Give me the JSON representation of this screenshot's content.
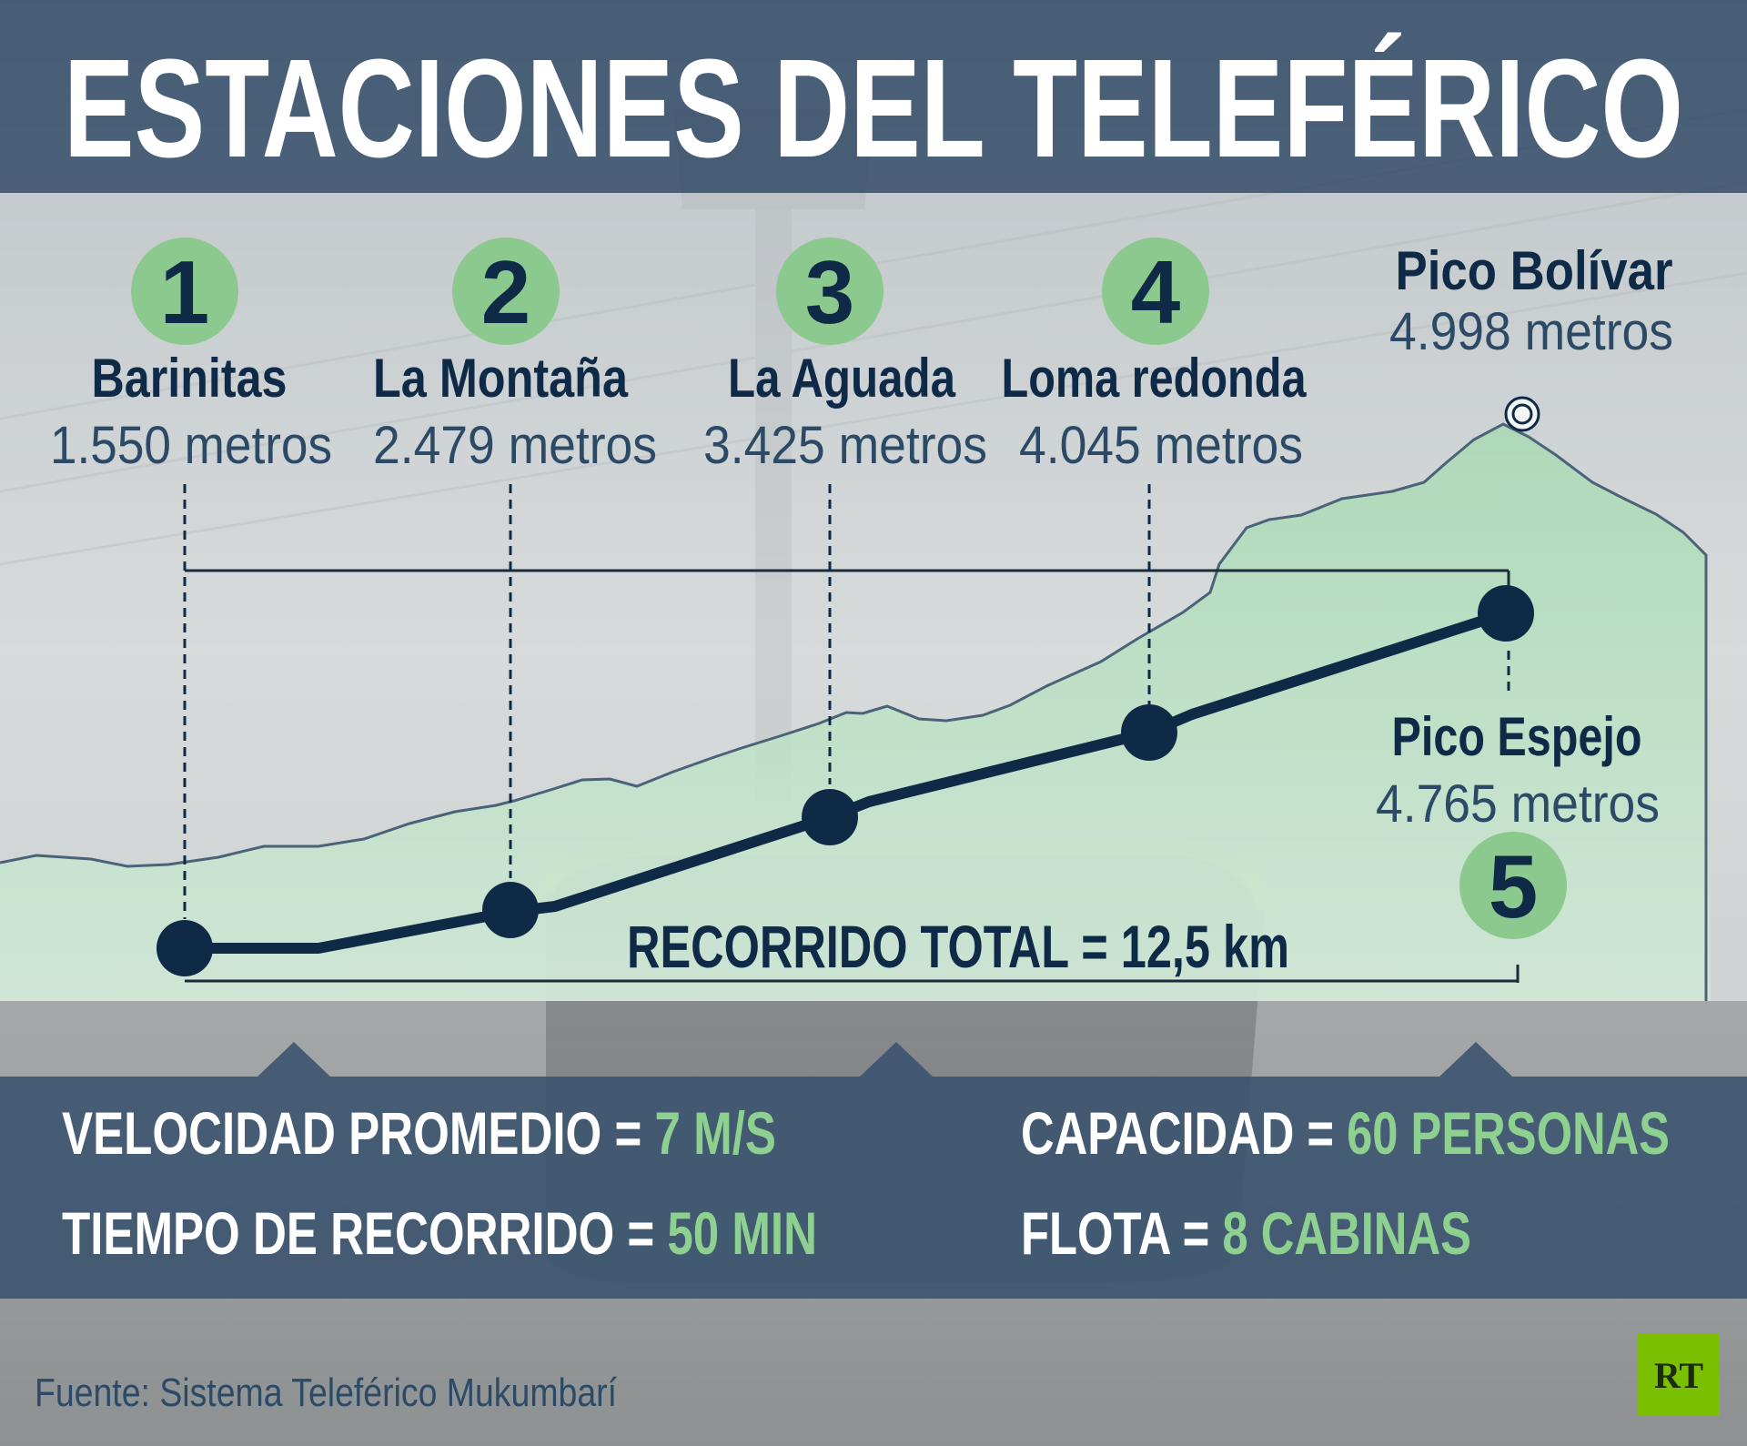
{
  "title": "ESTACIONES DEL TELEFÉRICO",
  "colors": {
    "navy": "#0f2a47",
    "header_band": "#3c5470",
    "stats_band": "#3c5470",
    "green": "#8cc98f",
    "green_text": "#8ed08f",
    "mountain": "#bfe0c7",
    "panel": "#f2f6f5",
    "fog": "#a9acad",
    "source_text": "#2c4a66",
    "rt_green": "#7bc000"
  },
  "stations": [
    {
      "number": "1",
      "name": "Barinitas",
      "elevation": "1.550 metros",
      "elevation_m": 1550
    },
    {
      "number": "2",
      "name": "La Montaña",
      "elevation": "2.479 metros",
      "elevation_m": 2479
    },
    {
      "number": "3",
      "name": "La Aguada",
      "elevation": "3.425 metros",
      "elevation_m": 3425
    },
    {
      "number": "4",
      "name": "Loma redonda",
      "elevation": "4.045 metros",
      "elevation_m": 4045
    },
    {
      "number": "5",
      "name": "Pico Espejo",
      "elevation": "4.765 metros",
      "elevation_m": 4765
    }
  ],
  "peak": {
    "name": "Pico Bolívar",
    "elevation": "4.998 metros",
    "icon": "peak-marker-icon"
  },
  "total": {
    "label": "RECORRIDO TOTAL = 12,5 km"
  },
  "stats": [
    {
      "label": "VELOCIDAD PROMEDIO = ",
      "value": "7 M/S"
    },
    {
      "label": "TIEMPO DE RECORRIDO = ",
      "value": "50 MIN"
    },
    {
      "label": "CAPACIDAD = ",
      "value": "60 PERSONAS"
    },
    {
      "label": "FLOTA = ",
      "value": "8 CABINAS"
    }
  ],
  "source": "Fuente: Sistema Teleférico Mukumbarí",
  "logo": "RT"
}
